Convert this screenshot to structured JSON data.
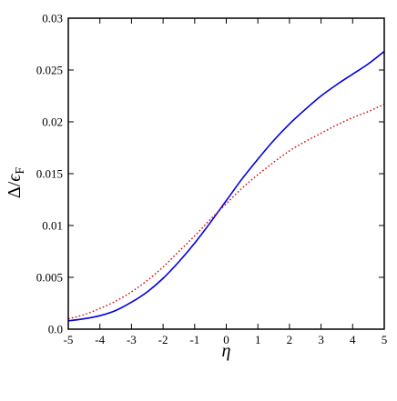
{
  "chart_data": {
    "type": "line",
    "title": "",
    "xlabel": "η",
    "ylabel_main": "Δ/",
    "ylabel_epsilon": "ϵ",
    "ylabel_sub": "F",
    "xlim": [
      -5,
      5
    ],
    "ylim": [
      0,
      0.03
    ],
    "xticks": [
      -5,
      -4,
      -3,
      -2,
      -1,
      0,
      1,
      2,
      3,
      4,
      5
    ],
    "xtick_labels": [
      "-5",
      "-4",
      "-3",
      "-2",
      "-1",
      "0",
      "1",
      "2",
      "3",
      "4",
      "5"
    ],
    "yticks": [
      0,
      0.005,
      0.01,
      0.015,
      0.02,
      0.025,
      0.03
    ],
    "ytick_labels": [
      "0.0",
      "0.005",
      "0.01",
      "0.015",
      "0.02",
      "0.025",
      "0.03"
    ],
    "grid": false,
    "legend": "none",
    "series": [
      {
        "color": "#0000dd",
        "style": "solid",
        "x": [
          -5,
          -4.5,
          -4,
          -3.5,
          -3,
          -2.5,
          -2,
          -1.5,
          -1,
          -0.5,
          0,
          0.5,
          1,
          1.5,
          2,
          2.5,
          3,
          3.5,
          4,
          4.5,
          5
        ],
        "y": [
          0.0008,
          0.001,
          0.0013,
          0.0018,
          0.0026,
          0.0036,
          0.0049,
          0.0065,
          0.0083,
          0.0103,
          0.0124,
          0.0145,
          0.0164,
          0.0182,
          0.0198,
          0.0212,
          0.0225,
          0.0236,
          0.0246,
          0.0256,
          0.0268
        ]
      },
      {
        "color": "#dd0000",
        "style": "dotted",
        "x": [
          -5,
          -4.5,
          -4,
          -3.5,
          -3,
          -2.5,
          -2,
          -1.5,
          -1,
          -0.5,
          0,
          0.5,
          1,
          1.5,
          2,
          2.5,
          3,
          3.5,
          4,
          4.5,
          5
        ],
        "y": [
          0.001,
          0.0014,
          0.002,
          0.0027,
          0.0036,
          0.0047,
          0.006,
          0.0075,
          0.009,
          0.0106,
          0.0121,
          0.0136,
          0.0149,
          0.0161,
          0.0172,
          0.0181,
          0.0189,
          0.0197,
          0.0204,
          0.021,
          0.0217
        ]
      }
    ]
  }
}
